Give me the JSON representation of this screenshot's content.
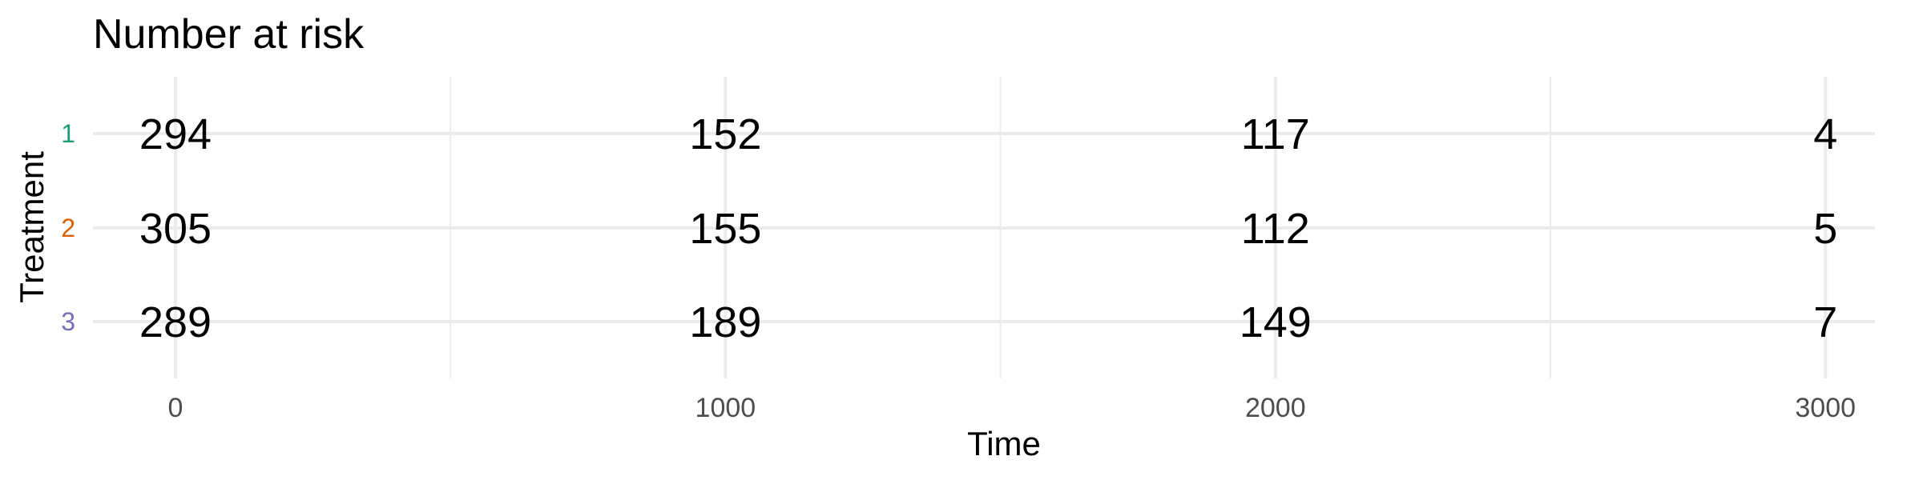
{
  "chart_data": {
    "type": "table",
    "title": "Number at risk",
    "xlabel": "Time",
    "ylabel": "Treatment",
    "x_ticks": [
      0,
      1000,
      2000,
      3000
    ],
    "x_minor_ticks": [
      500,
      1500,
      2500
    ],
    "xlim": [
      -150,
      3090
    ],
    "grid": true,
    "series": [
      {
        "name": "1",
        "color": "#1b9e77",
        "values": [
          294,
          152,
          117,
          4
        ]
      },
      {
        "name": "2",
        "color": "#d95f02",
        "values": [
          305,
          155,
          112,
          5
        ]
      },
      {
        "name": "3",
        "color": "#7570b3",
        "values": [
          289,
          189,
          149,
          7
        ]
      }
    ]
  }
}
